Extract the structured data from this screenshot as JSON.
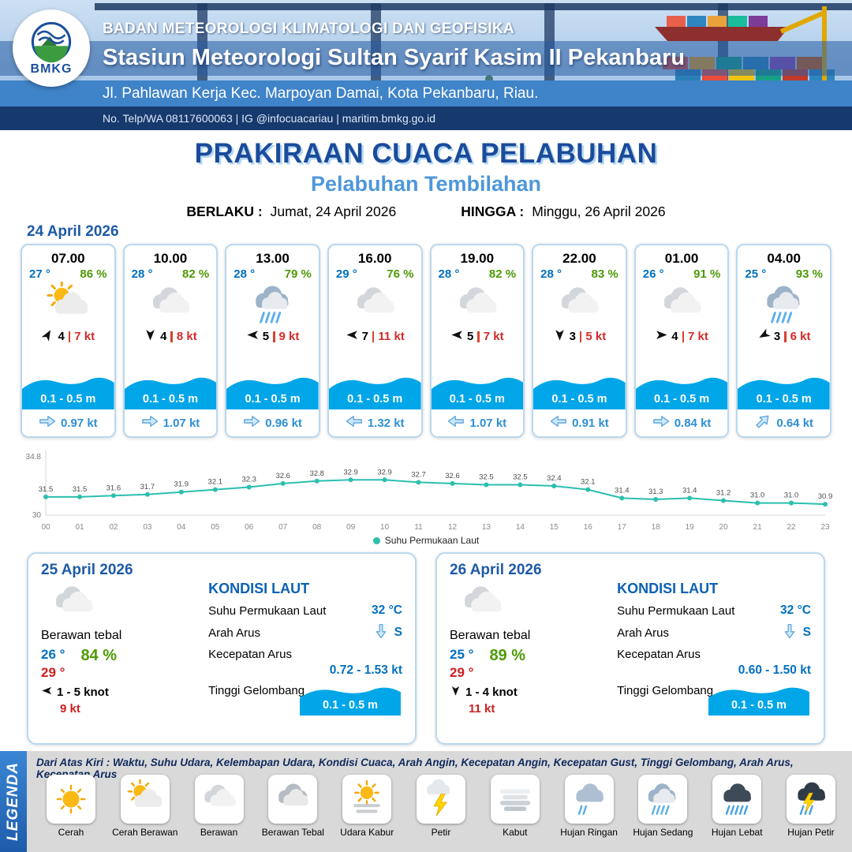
{
  "header": {
    "logo_label": "BMKG",
    "org": "BADAN METEOROLOGI KLIMATOLOGI DAN GEOFISIKA",
    "station": "Stasiun Meteorologi Sultan Syarif Kasim II Pekanbaru",
    "address": "Jl. Pahlawan Kerja Kec. Marpoyan Damai, Kota Pekanbaru, Riau.",
    "contact": "No. Telp/WA 08117600063 | IG @infocuacariau | maritim.bmkg.go.id"
  },
  "title": {
    "main": "PRAKIRAAN CUACA PELABUHAN",
    "sub": "Pelabuhan Tembilahan",
    "valid_label": "BERLAKU :",
    "valid_value": "Jumat, 24 April 2026",
    "until_label": "HINGGA :",
    "until_value": "Minggu, 26 April 2026"
  },
  "day1": {
    "date": "24 April 2026",
    "cards": [
      {
        "time": "07.00",
        "temp": "27 °",
        "rh": "86 %",
        "icon": "cerah-berawan",
        "wind_deg": 30,
        "wind": "4",
        "gust": "7 kt",
        "wave": "0.1 - 0.5 m",
        "cur_deg": 0,
        "current": "0.97 kt"
      },
      {
        "time": "10.00",
        "temp": "28 °",
        "rh": "82 %",
        "icon": "berawan",
        "wind_deg": 180,
        "wind": "4",
        "gust": "8 kt",
        "wave": "0.1 - 0.5 m",
        "cur_deg": 0,
        "current": "1.07 kt"
      },
      {
        "time": "13.00",
        "temp": "28 °",
        "rh": "79 %",
        "icon": "hujan-sedang",
        "wind_deg": 270,
        "wind": "5",
        "gust": "9 kt",
        "wave": "0.1 - 0.5 m",
        "cur_deg": 0,
        "current": "0.96 kt"
      },
      {
        "time": "16.00",
        "temp": "29 °",
        "rh": "76 %",
        "icon": "berawan",
        "wind_deg": 270,
        "wind": "7",
        "gust": "11 kt",
        "wave": "0.1 - 0.5 m",
        "cur_deg": 180,
        "current": "1.32 kt"
      },
      {
        "time": "19.00",
        "temp": "28 °",
        "rh": "82 %",
        "icon": "berawan",
        "wind_deg": 270,
        "wind": "5",
        "gust": "7 kt",
        "wave": "0.1 - 0.5 m",
        "cur_deg": 180,
        "current": "1.07 kt"
      },
      {
        "time": "22.00",
        "temp": "28 °",
        "rh": "83 %",
        "icon": "berawan",
        "wind_deg": 180,
        "wind": "3",
        "gust": "5 kt",
        "wave": "0.1 - 0.5 m",
        "cur_deg": 180,
        "current": "0.91 kt"
      },
      {
        "time": "01.00",
        "temp": "26 °",
        "rh": "91 %",
        "icon": "berawan",
        "wind_deg": 90,
        "wind": "4",
        "gust": "7 kt",
        "wave": "0.1 - 0.5 m",
        "cur_deg": 0,
        "current": "0.84 kt"
      },
      {
        "time": "04.00",
        "temp": "25 °",
        "rh": "93 %",
        "icon": "hujan-sedang",
        "wind_deg": 240,
        "wind": "3",
        "gust": "6 kt",
        "wave": "0.1 - 0.5 m",
        "cur_deg": -45,
        "current": "0.64 kt"
      }
    ]
  },
  "chart_data": {
    "type": "line",
    "series_name": "Suhu Permukaan Laut",
    "x": [
      "00",
      "01",
      "02",
      "03",
      "04",
      "05",
      "06",
      "07",
      "08",
      "09",
      "10",
      "11",
      "12",
      "13",
      "14",
      "15",
      "16",
      "17",
      "18",
      "19",
      "20",
      "21",
      "22",
      "23"
    ],
    "values": [
      31.5,
      31.5,
      31.6,
      31.7,
      31.9,
      32.1,
      32.3,
      32.6,
      32.8,
      32.9,
      32.9,
      32.7,
      32.6,
      32.5,
      32.5,
      32.4,
      32.1,
      31.4,
      31.3,
      31.4,
      31.2,
      31.0,
      31.0,
      30.9
    ],
    "ylim": [
      30,
      34.8
    ],
    "xlabel": "",
    "ylabel": "",
    "line_color": "#2bbfae",
    "legend_position": "bottom",
    "grid": false
  },
  "days": [
    {
      "date": "25 April 2026",
      "icon": "berawan",
      "condition": "Berawan tebal",
      "temp_min": "26 °",
      "temp_max": "29 °",
      "rh": "84 %",
      "wind_deg": 270,
      "wind": "1 - 5 knot",
      "gust": "9 kt",
      "sea": {
        "heading": "KONDISI LAUT",
        "sst_label": "Suhu Permukaan Laut",
        "sst": "32 °C",
        "dir_label": "Arah Arus",
        "dir": "S",
        "speed_label": "Kecepatan Arus",
        "speed": "0.72 - 1.53 kt",
        "wave_label": "Tinggi Gelombang",
        "wave": "0.1 - 0.5 m"
      }
    },
    {
      "date": "26 April 2026",
      "icon": "berawan",
      "condition": "Berawan tebal",
      "temp_min": "25 °",
      "temp_max": "29 °",
      "rh": "89 %",
      "wind_deg": 180,
      "wind": "1 - 4 knot",
      "gust": "11 kt",
      "sea": {
        "heading": "KONDISI LAUT",
        "sst_label": "Suhu Permukaan Laut",
        "sst": "32 °C",
        "dir_label": "Arah Arus",
        "dir": "S",
        "speed_label": "Kecepatan Arus",
        "speed": "0.60 - 1.50 kt",
        "wave_label": "Tinggi Gelombang",
        "wave": "0.1 - 0.5 m"
      }
    }
  ],
  "legend": {
    "vertical_label": "LEGENDA",
    "description": "Dari Atas Kiri : Waktu, Suhu Udara, Kelembapan Udara, Kondisi Cuaca, Arah Angin, Kecepatan Angin, Kecepatan Gust, Tinggi Gelombang, Arah Arus, Kecepatan Arus",
    "items": [
      {
        "label": "Cerah",
        "icon": "cerah"
      },
      {
        "label": "Cerah Berawan",
        "icon": "cerah-berawan"
      },
      {
        "label": "Berawan",
        "icon": "berawan"
      },
      {
        "label": "Berawan Tebal",
        "icon": "berawan-tebal"
      },
      {
        "label": "Udara Kabur",
        "icon": "udara-kabur"
      },
      {
        "label": "Petir",
        "icon": "petir"
      },
      {
        "label": "Kabut",
        "icon": "kabut"
      },
      {
        "label": "Hujan Ringan",
        "icon": "hujan-ringan"
      },
      {
        "label": "Hujan Sedang",
        "icon": "hujan-sedang"
      },
      {
        "label": "Hujan Lebat",
        "icon": "hujan-lebat"
      },
      {
        "label": "Hujan Petir",
        "icon": "hujan-petir"
      }
    ]
  }
}
